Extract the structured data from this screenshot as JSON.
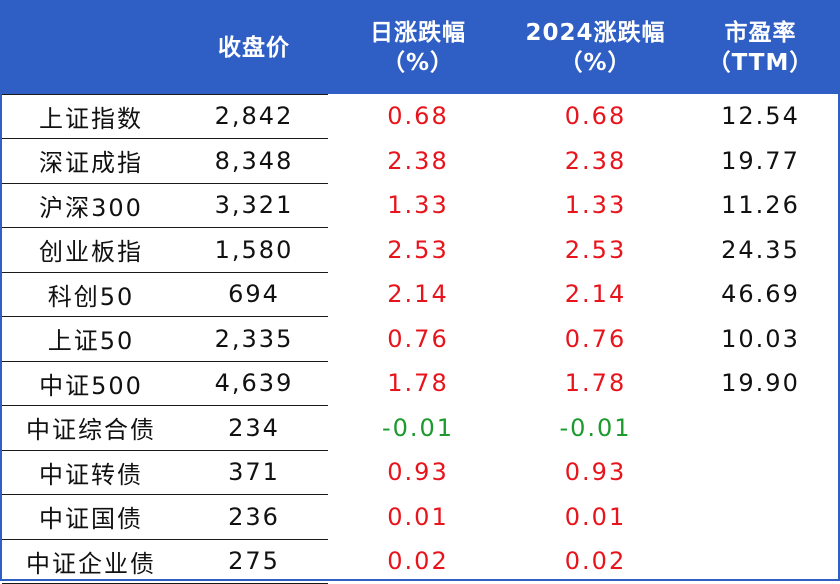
{
  "colors": {
    "header_bg": "#2f5ec4",
    "header_text": "#ffffff",
    "positive": "#e8141c",
    "negative": "#1c9a2e"
  },
  "headers": {
    "name": "",
    "close": "收盘价",
    "day_line1": "日涨跌幅",
    "day_line2": "（%）",
    "ytd_line1": "2024涨跌幅",
    "ytd_line2": "（%）",
    "pe_line1": "市盈率",
    "pe_line2": "（TTM）"
  },
  "rows": [
    {
      "name": "上证指数",
      "close": "2,842",
      "day": "0.68",
      "ytd": "0.68",
      "pe": "12.54",
      "dir": "up"
    },
    {
      "name": "深证成指",
      "close": "8,348",
      "day": "2.38",
      "ytd": "2.38",
      "pe": "19.77",
      "dir": "up"
    },
    {
      "name": "沪深300",
      "close": "3,321",
      "day": "1.33",
      "ytd": "1.33",
      "pe": "11.26",
      "dir": "up"
    },
    {
      "name": "创业板指",
      "close": "1,580",
      "day": "2.53",
      "ytd": "2.53",
      "pe": "24.35",
      "dir": "up"
    },
    {
      "name": "科创50",
      "close": "694",
      "day": "2.14",
      "ytd": "2.14",
      "pe": "46.69",
      "dir": "up"
    },
    {
      "name": "上证50",
      "close": "2,335",
      "day": "0.76",
      "ytd": "0.76",
      "pe": "10.03",
      "dir": "up"
    },
    {
      "name": "中证500",
      "close": "4,639",
      "day": "1.78",
      "ytd": "1.78",
      "pe": "19.90",
      "dir": "up"
    },
    {
      "name": "中证综合债",
      "close": "234",
      "day": "-0.01",
      "ytd": "-0.01",
      "pe": "",
      "dir": "down"
    },
    {
      "name": "中证转债",
      "close": "371",
      "day": "0.93",
      "ytd": "0.93",
      "pe": "",
      "dir": "up"
    },
    {
      "name": "中证国债",
      "close": "236",
      "day": "0.01",
      "ytd": "0.01",
      "pe": "",
      "dir": "up"
    },
    {
      "name": "中证企业债",
      "close": "275",
      "day": "0.02",
      "ytd": "0.02",
      "pe": "",
      "dir": "up"
    }
  ]
}
